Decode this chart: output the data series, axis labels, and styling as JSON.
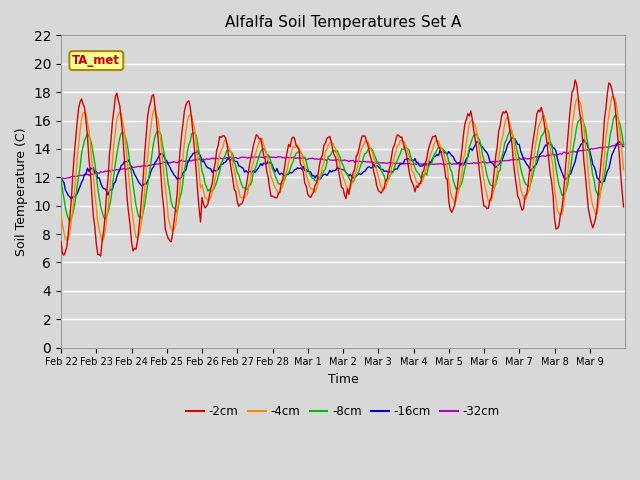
{
  "title": "Alfalfa Soil Temperatures Set A",
  "xlabel": "Time",
  "ylabel": "Soil Temperature (C)",
  "annotation": "TA_met",
  "ylim": [
    0,
    22
  ],
  "yticks": [
    0,
    2,
    4,
    6,
    8,
    10,
    12,
    14,
    16,
    18,
    20,
    22
  ],
  "x_labels": [
    "Feb 22",
    "Feb 23",
    "Feb 24",
    "Feb 25",
    "Feb 26",
    "Feb 27",
    "Feb 28",
    "Mar 1",
    "Mar 2",
    "Mar 3",
    "Mar 4",
    "Mar 5",
    "Mar 6",
    "Mar 7",
    "Mar 8",
    "Mar 9"
  ],
  "colors": {
    "-2cm": "#dd0000",
    "-4cm": "#ff8800",
    "-8cm": "#00bb00",
    "-16cm": "#0000cc",
    "-32cm": "#bb00bb"
  },
  "background_color": "#d8d8d8",
  "plot_bg_color": "#d8d8d8",
  "annotation_bg": "#ffff99",
  "annotation_border": "#aa8800"
}
